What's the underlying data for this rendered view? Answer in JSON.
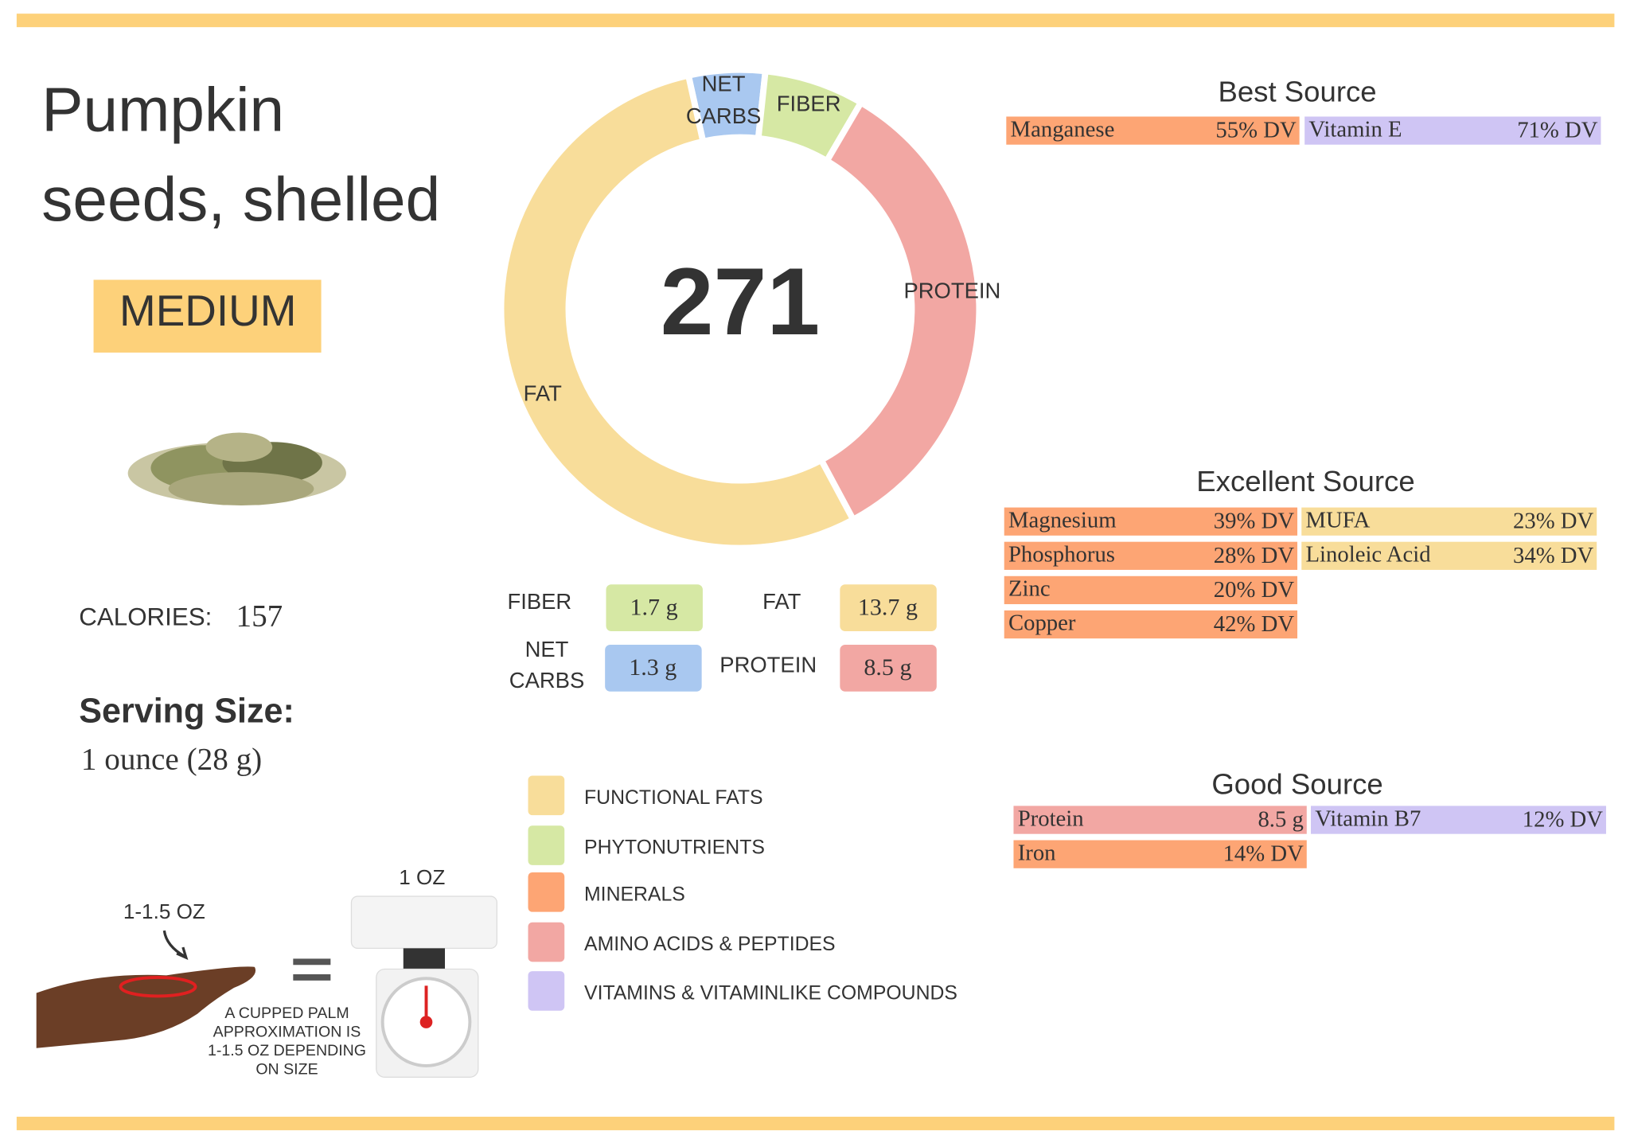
{
  "title": [
    "Pumpkin",
    "seeds, shelled"
  ],
  "rating": "MEDIUM",
  "calories": {
    "label": "CALORIES:",
    "value": "157"
  },
  "serving": {
    "label": "Serving Size:",
    "value": "1 ounce (28 g)"
  },
  "donut_center": "271",
  "macros": [
    {
      "name": [
        "NET",
        "CARBS"
      ],
      "value": 1.3,
      "label": "1.3 g",
      "color": "#a9c8f0"
    },
    {
      "name": [
        "FIBER"
      ],
      "value": 1.7,
      "label": "1.7 g",
      "color": "#d6e8a4"
    },
    {
      "name": [
        "PROTEIN"
      ],
      "value": 8.5,
      "label": "8.5 g",
      "color": "#f2a7a3"
    },
    {
      "name": [
        "FAT"
      ],
      "value": 13.7,
      "label": "13.7 g",
      "color": "#f8dd9a"
    }
  ],
  "legend": [
    {
      "name": "FUNCTIONAL  FATS",
      "color": "#f8dd9a"
    },
    {
      "name": "PHYTONUTRIENTS",
      "color": "#d6e8a4"
    },
    {
      "name": "MINERALS",
      "color": "#fda574"
    },
    {
      "name": "AMINO ACIDS & PEPTIDES",
      "color": "#f2a7a3"
    },
    {
      "name": "VITAMINS & VITAMINLIKE COMPOUNDS",
      "color": "#cfc5f4"
    }
  ],
  "sources": [
    {
      "title": "Best Source",
      "columns": [
        [
          {
            "name": "Manganese",
            "value": "55% DV",
            "color": "#fda574"
          }
        ],
        [
          {
            "name": "Vitamin E",
            "value": "71% DV",
            "color": "#cfc5f4"
          }
        ]
      ]
    },
    {
      "title": "Excellent Source",
      "columns": [
        [
          {
            "name": "Magnesium",
            "value": "39% DV",
            "color": "#fda574"
          },
          {
            "name": "Phosphorus",
            "value": "28% DV",
            "color": "#fda574"
          },
          {
            "name": "Zinc",
            "value": "20% DV",
            "color": "#fda574"
          },
          {
            "name": "Copper",
            "value": "42% DV",
            "color": "#fda574"
          }
        ],
        [
          {
            "name": "MUFA",
            "value": "23% DV",
            "color": "#f8dd9a"
          },
          {
            "name": "Linoleic Acid",
            "value": "34% DV",
            "color": "#f8dd9a"
          }
        ]
      ]
    },
    {
      "title": "Good Source",
      "columns": [
        [
          {
            "name": "Protein",
            "value": "8.5 g",
            "color": "#f2a7a3"
          },
          {
            "name": "Iron",
            "value": "14% DV",
            "color": "#fda574"
          }
        ],
        [
          {
            "name": "Vitamin B7",
            "value": "12% DV",
            "color": "#cfc5f4"
          }
        ]
      ]
    }
  ],
  "portion": {
    "hand_label": "1-1.5 OZ",
    "scale_label": "1 OZ",
    "note": [
      "A CUPPED PALM",
      "APPROXIMATION IS",
      "1-1.5 OZ DEPENDING",
      "ON SIZE"
    ]
  }
}
